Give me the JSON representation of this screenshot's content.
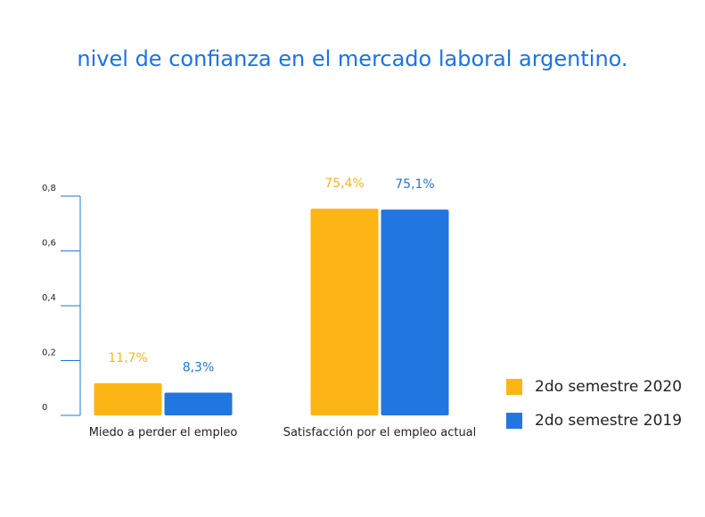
{
  "chart_data": {
    "type": "bar",
    "title": "nivel de confianza en el mercado laboral argentino.",
    "categories": [
      "Miedo a perder el empleo",
      "Satisfacción por el empleo actual"
    ],
    "series": [
      {
        "name": "2do semestre 2020",
        "values": [
          0.117,
          0.754
        ],
        "labels": [
          "11,7%",
          "75,4%"
        ],
        "color": "#FDB515"
      },
      {
        "name": "2do semestre 2019",
        "values": [
          0.083,
          0.751
        ],
        "labels": [
          "8,3%",
          "75,1%"
        ],
        "color": "#2176E0"
      }
    ],
    "yticks": [
      {
        "value": 0,
        "label": "0"
      },
      {
        "value": 0.2,
        "label": "0,2"
      },
      {
        "value": 0.4,
        "label": "0,4"
      },
      {
        "value": 0.6,
        "label": "0,6"
      },
      {
        "value": 0.8,
        "label": "0,8"
      }
    ],
    "ylim": [
      0,
      0.8
    ],
    "xlabel": "",
    "ylabel": "",
    "axis_color": "#2176E0"
  }
}
